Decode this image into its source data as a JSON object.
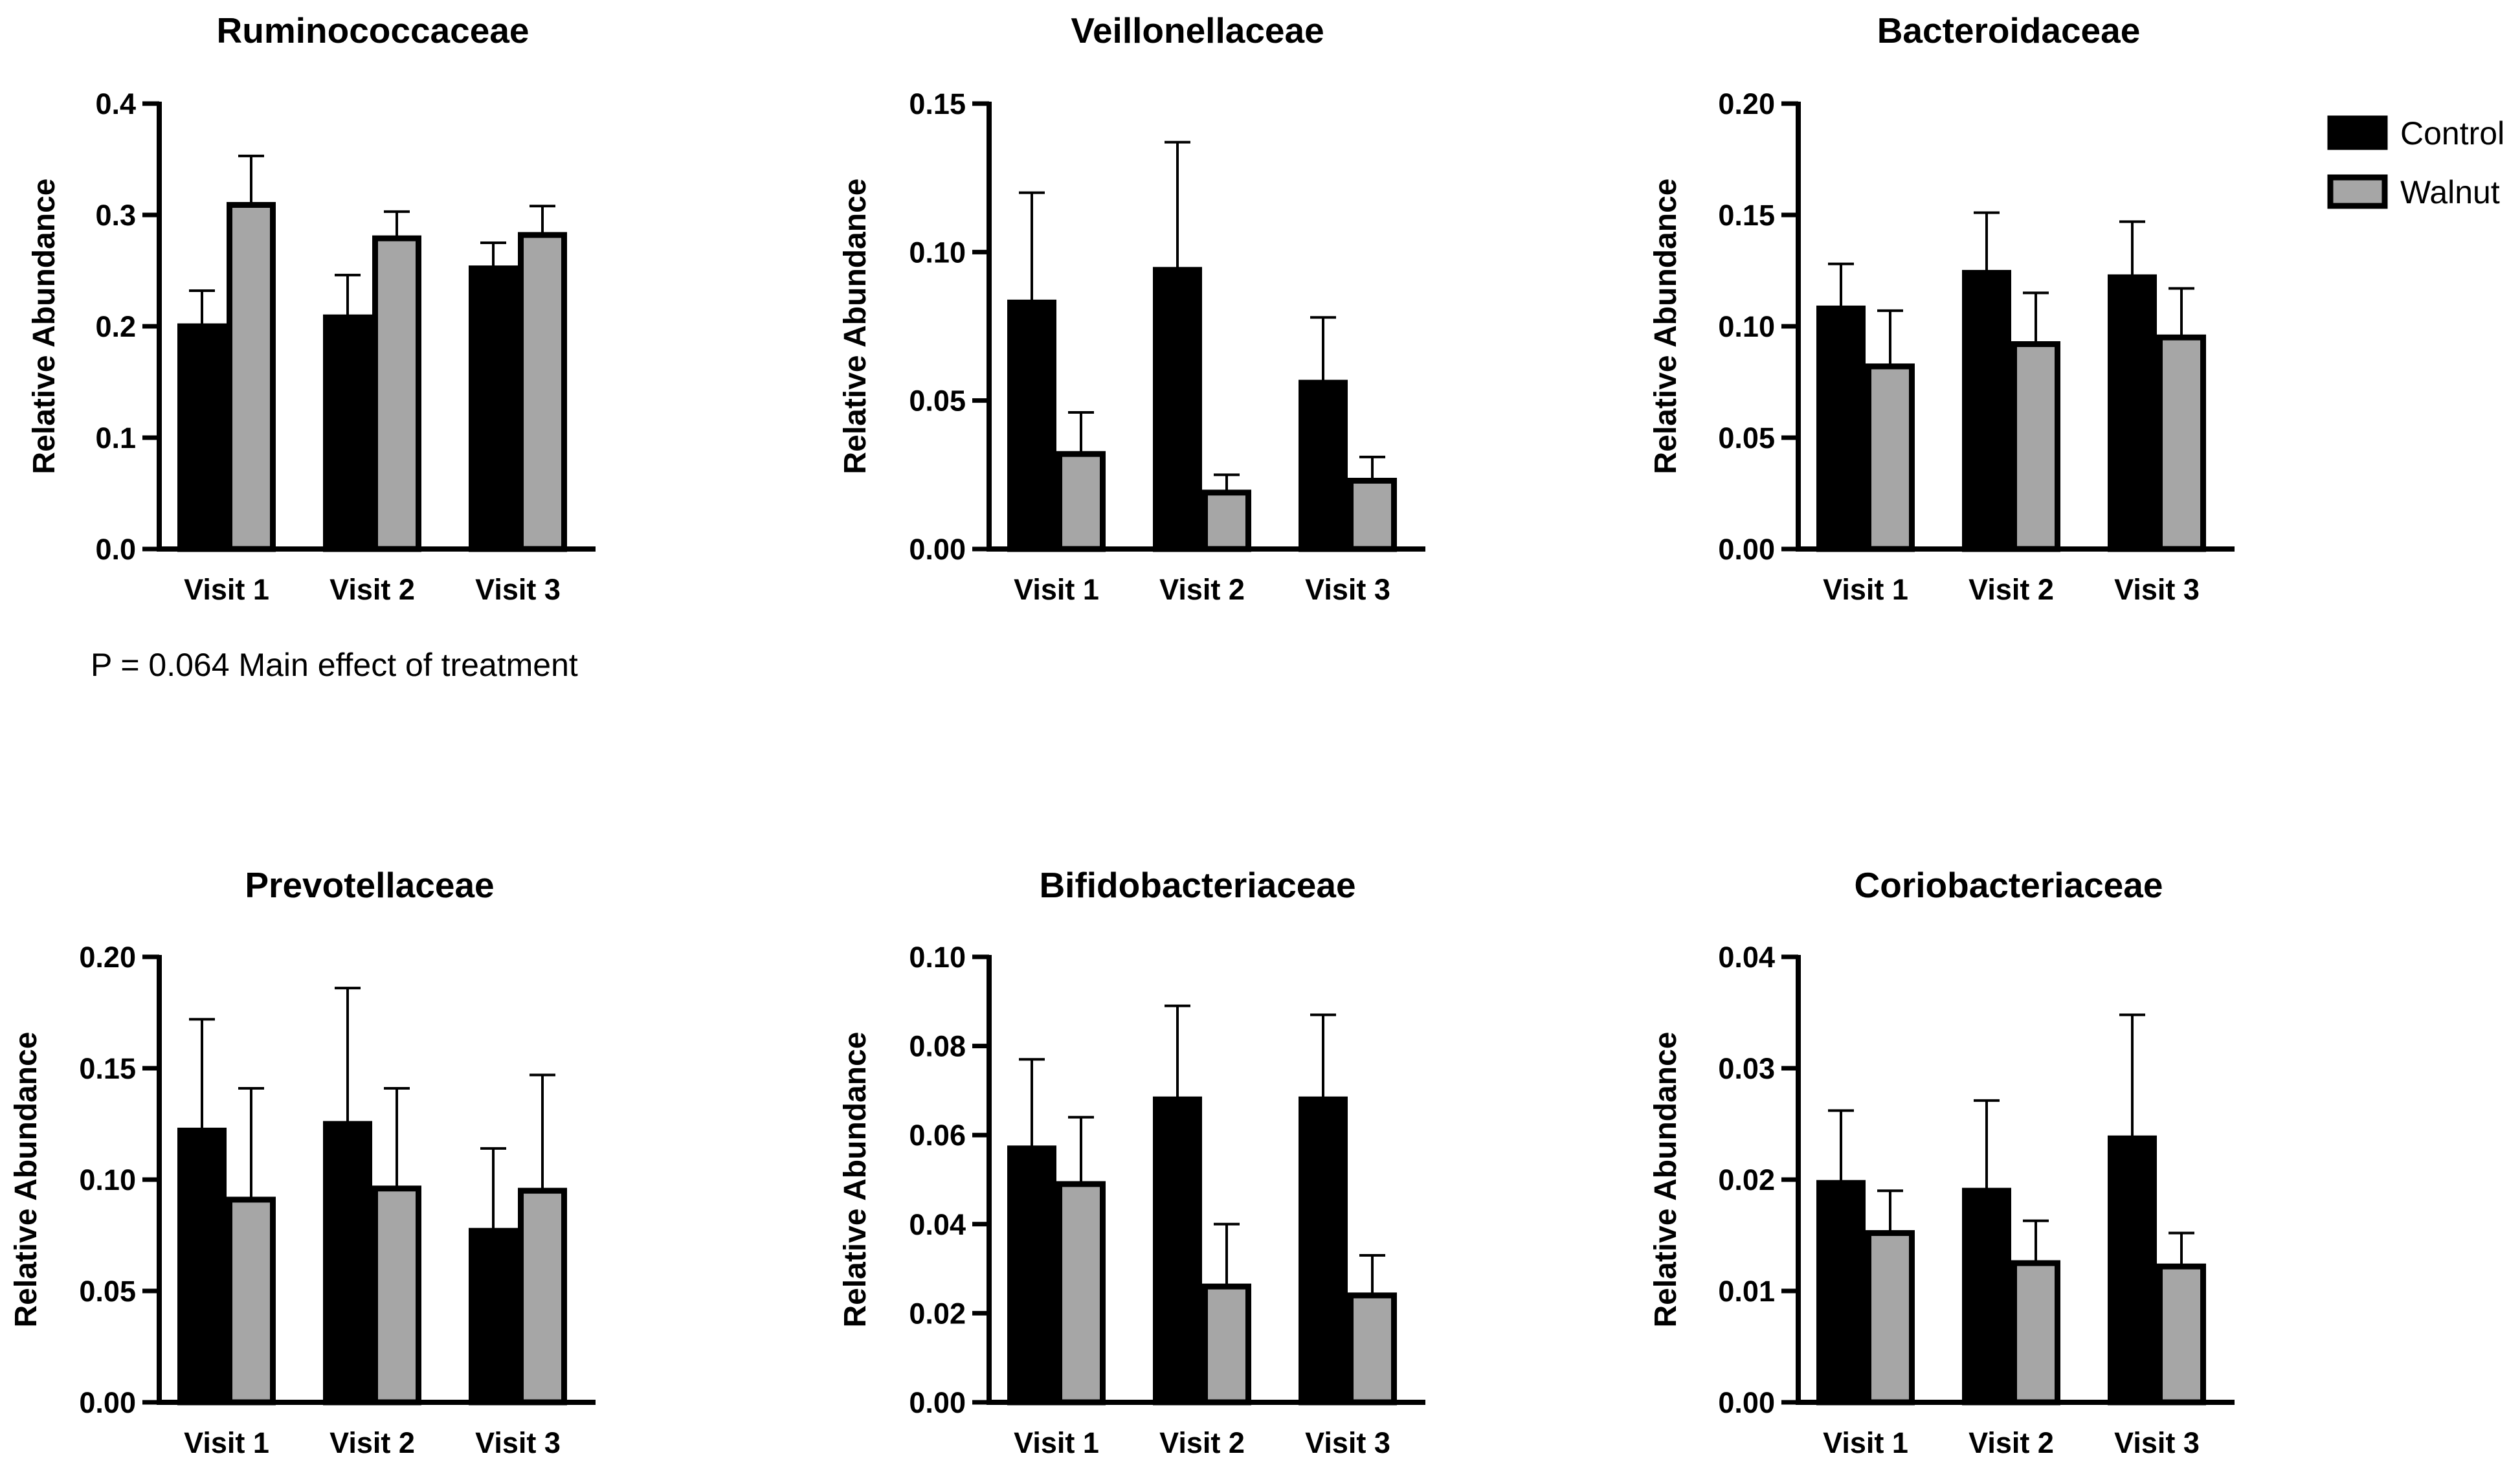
{
  "legend": {
    "position": "top-right",
    "entries": [
      {
        "name": "Control",
        "color": "#000000"
      },
      {
        "name": "Walnut",
        "color": "#a6a6a6"
      }
    ]
  },
  "colors": {
    "control": "#000000",
    "walnut": "#a6a6a6",
    "axis": "#000000"
  },
  "annotation": "P = 0.064 Main effect of treatment",
  "chart_data": [
    {
      "type": "bar",
      "title": "Ruminococcaceae",
      "ylabel": "Relative Abundance",
      "xlabel": "",
      "categories": [
        "Visit 1",
        "Visit 2",
        "Visit 3"
      ],
      "ylim": [
        0,
        0.4
      ],
      "yticks": [
        "0.0",
        "0.1",
        "0.2",
        "0.3",
        "0.4"
      ],
      "series": [
        {
          "name": "Control",
          "values": [
            0.2,
            0.208,
            0.252
          ],
          "errors": [
            0.032,
            0.038,
            0.023
          ]
        },
        {
          "name": "Walnut",
          "values": [
            0.309,
            0.279,
            0.282
          ],
          "errors": [
            0.044,
            0.024,
            0.026
          ]
        }
      ]
    },
    {
      "type": "bar",
      "title": "Veillonellaceae",
      "ylabel": "Relative Abundance",
      "xlabel": "",
      "categories": [
        "Visit 1",
        "Visit 2",
        "Visit 3"
      ],
      "ylim": [
        0,
        0.15
      ],
      "yticks": [
        "0.00",
        "0.05",
        "0.10",
        "0.15"
      ],
      "series": [
        {
          "name": "Control",
          "values": [
            0.083,
            0.094,
            0.056
          ],
          "errors": [
            0.037,
            0.043,
            0.022
          ]
        },
        {
          "name": "Walnut",
          "values": [
            0.032,
            0.019,
            0.023
          ],
          "errors": [
            0.014,
            0.006,
            0.008
          ]
        }
      ]
    },
    {
      "type": "bar",
      "title": "Bacteroidaceae",
      "ylabel": "Relative Abundance",
      "xlabel": "",
      "categories": [
        "Visit 1",
        "Visit 2",
        "Visit 3"
      ],
      "ylim": [
        0,
        0.2
      ],
      "yticks": [
        "0.00",
        "0.05",
        "0.10",
        "0.15",
        "0.20"
      ],
      "series": [
        {
          "name": "Control",
          "values": [
            0.108,
            0.124,
            0.122
          ],
          "errors": [
            0.02,
            0.027,
            0.025
          ]
        },
        {
          "name": "Walnut",
          "values": [
            0.082,
            0.092,
            0.095
          ],
          "errors": [
            0.025,
            0.023,
            0.022
          ]
        }
      ]
    },
    {
      "type": "bar",
      "title": "Prevotellaceae",
      "ylabel": "Relative Abundance",
      "xlabel": "",
      "categories": [
        "Visit 1",
        "Visit 2",
        "Visit 3"
      ],
      "ylim": [
        0,
        0.2
      ],
      "yticks": [
        "0.00",
        "0.05",
        "0.10",
        "0.15",
        "0.20"
      ],
      "series": [
        {
          "name": "Control",
          "values": [
            0.122,
            0.125,
            0.077
          ],
          "errors": [
            0.05,
            0.061,
            0.037
          ]
        },
        {
          "name": "Walnut",
          "values": [
            0.091,
            0.096,
            0.095
          ],
          "errors": [
            0.05,
            0.045,
            0.052
          ]
        }
      ]
    },
    {
      "type": "bar",
      "title": "Bifidobacteriaceae",
      "ylabel": "Relative Abundance",
      "xlabel": "",
      "categories": [
        "Visit 1",
        "Visit 2",
        "Visit 3"
      ],
      "ylim": [
        0,
        0.1
      ],
      "yticks": [
        "0.00",
        "0.02",
        "0.04",
        "0.06",
        "0.08",
        "0.10"
      ],
      "series": [
        {
          "name": "Control",
          "values": [
            0.057,
            0.068,
            0.068
          ],
          "errors": [
            0.02,
            0.021,
            0.019
          ]
        },
        {
          "name": "Walnut",
          "values": [
            0.049,
            0.026,
            0.024
          ],
          "errors": [
            0.015,
            0.014,
            0.009
          ]
        }
      ]
    },
    {
      "type": "bar",
      "title": "Coriobacteriaceae",
      "ylabel": "Relative Abundance",
      "xlabel": "",
      "categories": [
        "Visit 1",
        "Visit 2",
        "Visit 3"
      ],
      "ylim": [
        0,
        0.04
      ],
      "yticks": [
        "0.00",
        "0.01",
        "0.02",
        "0.03",
        "0.04"
      ],
      "series": [
        {
          "name": "Control",
          "values": [
            0.0197,
            0.019,
            0.0237
          ],
          "errors": [
            0.0065,
            0.0081,
            0.0111
          ]
        },
        {
          "name": "Walnut",
          "values": [
            0.0152,
            0.0125,
            0.0122
          ],
          "errors": [
            0.0038,
            0.0038,
            0.003
          ]
        }
      ]
    }
  ]
}
